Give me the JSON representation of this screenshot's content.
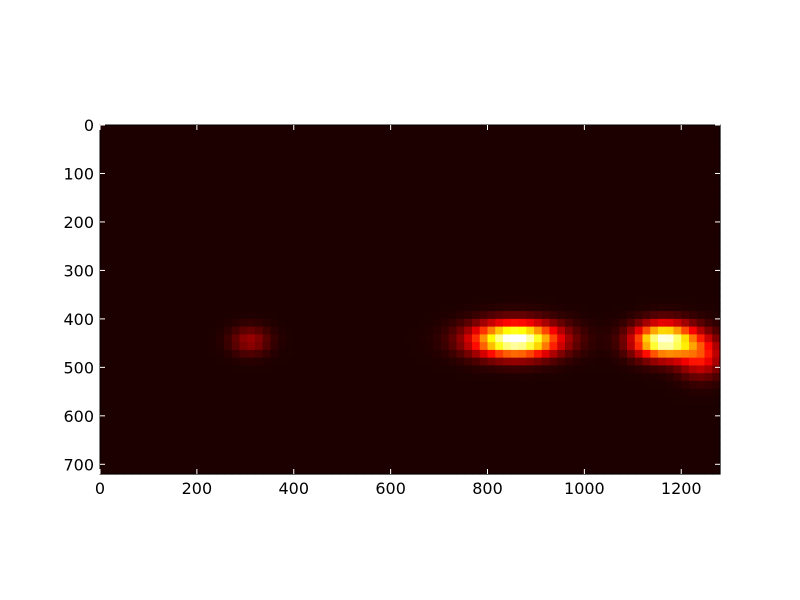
{
  "chart_data": {
    "type": "heatmap",
    "title": "",
    "xlabel": "",
    "ylabel": "",
    "xlim": [
      0,
      1280
    ],
    "ylim": [
      720,
      0
    ],
    "y_axis_inverted": true,
    "x_ticks": [
      0,
      200,
      400,
      600,
      800,
      1000,
      1200
    ],
    "y_ticks": [
      0,
      100,
      200,
      300,
      400,
      500,
      600,
      700
    ],
    "x_tick_labels": [
      "0",
      "200",
      "400",
      "600",
      "800",
      "1000",
      "1200"
    ],
    "y_tick_labels": [
      "0",
      "100",
      "200",
      "300",
      "400",
      "500",
      "600",
      "700"
    ],
    "colormap": "hot",
    "background_value": 0.04,
    "grid": false,
    "hot_spots": [
      {
        "x": 310,
        "y": 445,
        "sx": 28,
        "sy": 20,
        "intensity": 0.18
      },
      {
        "x": 858,
        "y": 443,
        "sx": 60,
        "sy": 24,
        "intensity": 1.0
      },
      {
        "x": 1165,
        "y": 445,
        "sx": 42,
        "sy": 24,
        "intensity": 0.95
      },
      {
        "x": 1240,
        "y": 475,
        "sx": 32,
        "sy": 30,
        "intensity": 0.35
      }
    ]
  }
}
